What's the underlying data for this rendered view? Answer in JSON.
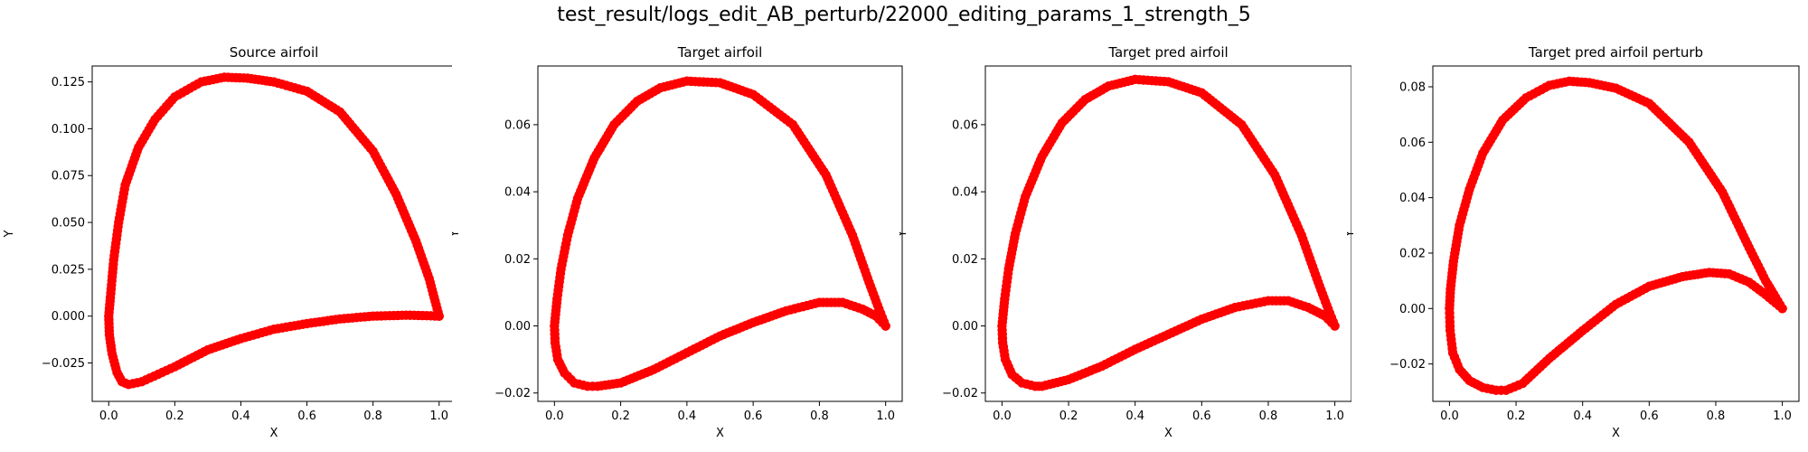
{
  "figure": {
    "suptitle": "test_result/logs_edit_AB_perturb/22000_editing_params_1_strength_5"
  },
  "colors": {
    "marker": "#ff0000",
    "axes": "#000000"
  },
  "chart_data": [
    {
      "type": "scatter",
      "title": "Source airfoil",
      "xlabel": "X",
      "ylabel": "Y",
      "xlim": [
        -0.05,
        1.05
      ],
      "ylim": [
        -0.0455,
        0.1335
      ],
      "xticks": [
        0.0,
        0.2,
        0.4,
        0.6,
        0.8,
        1.0
      ],
      "xtick_labels": [
        "0.0",
        "0.2",
        "0.4",
        "0.6",
        "0.8",
        "1.0"
      ],
      "yticks": [
        -0.025,
        0.0,
        0.025,
        0.05,
        0.075,
        0.1,
        0.125
      ],
      "ytick_labels": [
        "−0.025",
        "0.000",
        "0.025",
        "0.050",
        "0.075",
        "0.100",
        "0.125"
      ],
      "upper": [
        [
          1.0,
          0.0
        ],
        [
          0.97,
          0.02
        ],
        [
          0.93,
          0.04
        ],
        [
          0.87,
          0.065
        ],
        [
          0.8,
          0.088
        ],
        [
          0.7,
          0.109
        ],
        [
          0.6,
          0.12
        ],
        [
          0.5,
          0.125
        ],
        [
          0.42,
          0.127
        ],
        [
          0.35,
          0.1275
        ],
        [
          0.28,
          0.125
        ],
        [
          0.2,
          0.117
        ],
        [
          0.14,
          0.105
        ],
        [
          0.09,
          0.09
        ],
        [
          0.05,
          0.07
        ],
        [
          0.03,
          0.05
        ],
        [
          0.015,
          0.03
        ],
        [
          0.005,
          0.01
        ],
        [
          0.0,
          0.0
        ],
        [
          0.002,
          -0.01
        ],
        [
          0.01,
          -0.02
        ],
        [
          0.025,
          -0.03
        ],
        [
          0.04,
          -0.035
        ],
        [
          0.06,
          -0.0365
        ]
      ],
      "lower": [
        [
          0.06,
          -0.0365
        ],
        [
          0.1,
          -0.035
        ],
        [
          0.15,
          -0.031
        ],
        [
          0.2,
          -0.027
        ],
        [
          0.3,
          -0.018
        ],
        [
          0.4,
          -0.012
        ],
        [
          0.5,
          -0.007
        ],
        [
          0.6,
          -0.004
        ],
        [
          0.7,
          -0.0015
        ],
        [
          0.8,
          0.0
        ],
        [
          0.9,
          0.0005
        ],
        [
          0.95,
          0.0003
        ],
        [
          1.0,
          0.0
        ]
      ]
    },
    {
      "type": "scatter",
      "title": "Target airfoil",
      "xlabel": "X",
      "ylabel": "Y",
      "xlim": [
        -0.05,
        1.05
      ],
      "ylim": [
        -0.0225,
        0.0775
      ],
      "xticks": [
        0.0,
        0.2,
        0.4,
        0.6,
        0.8,
        1.0
      ],
      "xtick_labels": [
        "0.0",
        "0.2",
        "0.4",
        "0.6",
        "0.8",
        "1.0"
      ],
      "yticks": [
        -0.02,
        0.0,
        0.02,
        0.04,
        0.06
      ],
      "ytick_labels": [
        "−0.02",
        "0.00",
        "0.02",
        "0.04",
        "0.06"
      ],
      "upper": [
        [
          1.0,
          0.0
        ],
        [
          0.98,
          0.005
        ],
        [
          0.95,
          0.013
        ],
        [
          0.9,
          0.027
        ],
        [
          0.82,
          0.045
        ],
        [
          0.72,
          0.06
        ],
        [
          0.6,
          0.069
        ],
        [
          0.5,
          0.0725
        ],
        [
          0.4,
          0.073
        ],
        [
          0.32,
          0.071
        ],
        [
          0.25,
          0.067
        ],
        [
          0.18,
          0.06
        ],
        [
          0.12,
          0.05
        ],
        [
          0.07,
          0.038
        ],
        [
          0.04,
          0.027
        ],
        [
          0.02,
          0.017
        ],
        [
          0.008,
          0.008
        ],
        [
          0.0,
          0.0
        ],
        [
          0.002,
          -0.005
        ],
        [
          0.01,
          -0.01
        ],
        [
          0.03,
          -0.014
        ],
        [
          0.06,
          -0.017
        ],
        [
          0.1,
          -0.018
        ],
        [
          0.13,
          -0.018
        ]
      ],
      "lower": [
        [
          0.13,
          -0.018
        ],
        [
          0.2,
          -0.017
        ],
        [
          0.3,
          -0.013
        ],
        [
          0.4,
          -0.008
        ],
        [
          0.5,
          -0.003
        ],
        [
          0.6,
          0.001
        ],
        [
          0.7,
          0.0045
        ],
        [
          0.8,
          0.007
        ],
        [
          0.87,
          0.007
        ],
        [
          0.93,
          0.005
        ],
        [
          0.97,
          0.003
        ],
        [
          1.0,
          0.0
        ]
      ]
    },
    {
      "type": "scatter",
      "title": "Target pred airfoil",
      "xlabel": "X",
      "ylabel": "Y",
      "xlim": [
        -0.05,
        1.05
      ],
      "ylim": [
        -0.0225,
        0.0775
      ],
      "xticks": [
        0.0,
        0.2,
        0.4,
        0.6,
        0.8,
        1.0
      ],
      "xtick_labels": [
        "0.0",
        "0.2",
        "0.4",
        "0.6",
        "0.8",
        "1.0"
      ],
      "yticks": [
        -0.02,
        0.0,
        0.02,
        0.04,
        0.06
      ],
      "ytick_labels": [
        "−0.02",
        "0.00",
        "0.02",
        "0.04",
        "0.06"
      ],
      "upper": [
        [
          1.0,
          0.0
        ],
        [
          0.98,
          0.005
        ],
        [
          0.95,
          0.013
        ],
        [
          0.9,
          0.027
        ],
        [
          0.82,
          0.045
        ],
        [
          0.72,
          0.06
        ],
        [
          0.6,
          0.0695
        ],
        [
          0.5,
          0.0728
        ],
        [
          0.4,
          0.0735
        ],
        [
          0.32,
          0.0715
        ],
        [
          0.25,
          0.0675
        ],
        [
          0.18,
          0.0605
        ],
        [
          0.12,
          0.0505
        ],
        [
          0.07,
          0.0385
        ],
        [
          0.04,
          0.0275
        ],
        [
          0.02,
          0.017
        ],
        [
          0.008,
          0.008
        ],
        [
          0.0,
          0.0
        ],
        [
          0.002,
          -0.005
        ],
        [
          0.01,
          -0.01
        ],
        [
          0.03,
          -0.0145
        ],
        [
          0.06,
          -0.017
        ],
        [
          0.1,
          -0.018
        ],
        [
          0.12,
          -0.018
        ]
      ],
      "lower": [
        [
          0.12,
          -0.018
        ],
        [
          0.2,
          -0.016
        ],
        [
          0.3,
          -0.012
        ],
        [
          0.4,
          -0.007
        ],
        [
          0.5,
          -0.0025
        ],
        [
          0.6,
          0.002
        ],
        [
          0.7,
          0.0055
        ],
        [
          0.8,
          0.0075
        ],
        [
          0.86,
          0.0075
        ],
        [
          0.92,
          0.0055
        ],
        [
          0.97,
          0.003
        ],
        [
          1.0,
          0.0
        ]
      ]
    },
    {
      "type": "scatter",
      "title": "Target pred airfoil perturb",
      "xlabel": "X",
      "ylabel": "Y",
      "xlim": [
        -0.05,
        1.05
      ],
      "ylim": [
        -0.0335,
        0.0875
      ],
      "xticks": [
        0.0,
        0.2,
        0.4,
        0.6,
        0.8,
        1.0
      ],
      "xtick_labels": [
        "0.0",
        "0.2",
        "0.4",
        "0.6",
        "0.8",
        "1.0"
      ],
      "yticks": [
        -0.02,
        0.0,
        0.02,
        0.04,
        0.06,
        0.08
      ],
      "ytick_labels": [
        "−0.02",
        "0.00",
        "0.02",
        "0.04",
        "0.06",
        "0.08"
      ],
      "upper": [
        [
          1.0,
          0.0
        ],
        [
          0.98,
          0.004
        ],
        [
          0.95,
          0.01
        ],
        [
          0.9,
          0.022
        ],
        [
          0.82,
          0.042
        ],
        [
          0.72,
          0.06
        ],
        [
          0.6,
          0.074
        ],
        [
          0.5,
          0.0795
        ],
        [
          0.42,
          0.0815
        ],
        [
          0.36,
          0.082
        ],
        [
          0.3,
          0.0805
        ],
        [
          0.23,
          0.076
        ],
        [
          0.16,
          0.068
        ],
        [
          0.1,
          0.056
        ],
        [
          0.06,
          0.043
        ],
        [
          0.03,
          0.03
        ],
        [
          0.012,
          0.017
        ],
        [
          0.003,
          0.007
        ],
        [
          0.0,
          0.0
        ],
        [
          0.002,
          -0.008
        ],
        [
          0.01,
          -0.016
        ],
        [
          0.03,
          -0.022
        ],
        [
          0.06,
          -0.026
        ],
        [
          0.1,
          -0.0285
        ],
        [
          0.14,
          -0.0295
        ],
        [
          0.17,
          -0.0295
        ]
      ],
      "lower": [
        [
          0.17,
          -0.0295
        ],
        [
          0.22,
          -0.027
        ],
        [
          0.3,
          -0.018
        ],
        [
          0.4,
          -0.008
        ],
        [
          0.5,
          0.0015
        ],
        [
          0.6,
          0.008
        ],
        [
          0.7,
          0.0115
        ],
        [
          0.78,
          0.013
        ],
        [
          0.84,
          0.0125
        ],
        [
          0.9,
          0.0095
        ],
        [
          0.95,
          0.005
        ],
        [
          1.0,
          0.0
        ]
      ]
    }
  ]
}
